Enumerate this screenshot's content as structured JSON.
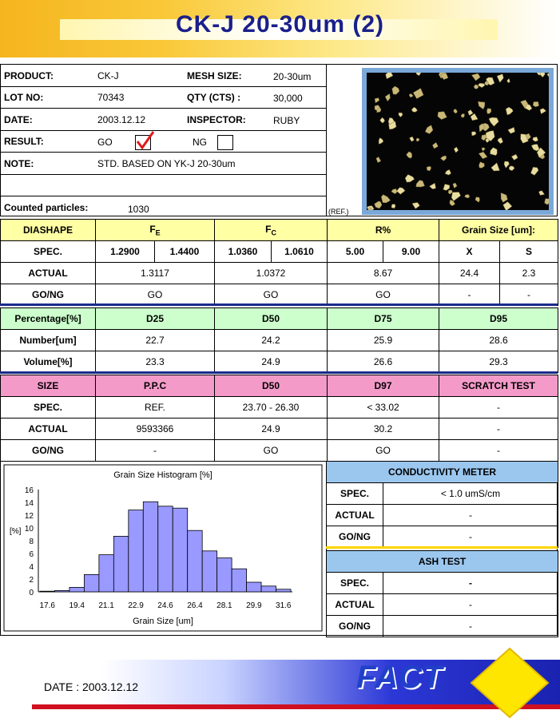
{
  "title": "CK-J 20-30um (2)",
  "info": {
    "product_label": "PRODUCT:",
    "product": "CK-J",
    "mesh_label": "MESH SIZE:",
    "mesh": "20-30um",
    "lot_label": "LOT NO:",
    "lot": "70343",
    "qty_label": "QTY (CTS) :",
    "qty": "30,000",
    "date_label": "DATE:",
    "date": "2003.12.12",
    "inspector_label": "INSPECTOR:",
    "inspector": "RUBY",
    "result_label": "RESULT:",
    "go": "GO",
    "ng": "NG",
    "note_label": "NOTE:",
    "note": "STD. BASED ON YK-J 20-30um",
    "counted_label": "Counted particles:",
    "counted": "1030",
    "ref": "(REF.)"
  },
  "table1": {
    "headers": [
      "DIASHAPE",
      "F",
      "F",
      "R%",
      "Grain Size [um]:"
    ],
    "subscripts": [
      "E",
      "C"
    ],
    "spec": [
      "SPEC.",
      "1.2900",
      "1.4400",
      "1.0360",
      "1.0610",
      "5.00",
      "9.00",
      "X",
      "S"
    ],
    "actual": [
      "ACTUAL",
      "1.3117",
      "1.0372",
      "8.67",
      "24.4",
      "2.3"
    ],
    "gong": [
      "GO/NG",
      "GO",
      "GO",
      "GO",
      "-",
      "-"
    ]
  },
  "table2": {
    "headers": [
      "Percentage[%]",
      "D25",
      "D50",
      "D75",
      "D95"
    ],
    "number": [
      "Number[um]",
      "22.7",
      "24.2",
      "25.9",
      "28.6"
    ],
    "volume": [
      "Volume[%]",
      "23.3",
      "24.9",
      "26.6",
      "29.3"
    ]
  },
  "table3": {
    "headers": [
      "SIZE",
      "P.P.C",
      "D50",
      "D97",
      "SCRATCH TEST"
    ],
    "spec": [
      "SPEC.",
      "REF.",
      "23.70 - 26.30",
      "< 33.02",
      "-"
    ],
    "actual": [
      "ACTUAL",
      "9593366",
      "24.9",
      "30.2",
      "-"
    ],
    "gong": [
      "GO/NG",
      "-",
      "GO",
      "GO",
      "-"
    ]
  },
  "conductivity": {
    "title": "CONDUCTIVITY METER",
    "rows": [
      [
        "SPEC.",
        "< 1.0 umS/cm"
      ],
      [
        "ACTUAL",
        "-"
      ],
      [
        "GO/NG",
        "-"
      ]
    ]
  },
  "ash": {
    "title": "ASH TEST",
    "rows": [
      [
        "SPEC.",
        "-"
      ],
      [
        "ACTUAL",
        "-"
      ],
      [
        "GO/NG",
        "-"
      ]
    ]
  },
  "chart_data": {
    "type": "bar",
    "title": "Grain Size Histogram [%]",
    "xlabel": "Grain Size [um]",
    "ylabel": "[%]",
    "ylim": [
      0,
      16
    ],
    "yticks": [
      0,
      2,
      4,
      6,
      8,
      10,
      12,
      14,
      16
    ],
    "xtick_labels": [
      "17.6",
      "19.4",
      "21.1",
      "22.9",
      "24.6",
      "26.4",
      "28.1",
      "29.9",
      "31.6"
    ],
    "values": [
      0.1,
      0.2,
      0.7,
      2.7,
      5.8,
      8.7,
      12.8,
      14.1,
      13.4,
      13.1,
      9.6,
      6.4,
      5.3,
      3.6,
      1.5,
      0.9,
      0.4
    ]
  },
  "footer": {
    "date": "DATE : 2003.12.12",
    "logo": "FACT",
    "colors": {
      "logo": "#2140c8",
      "diamond": "#ffe600"
    }
  }
}
